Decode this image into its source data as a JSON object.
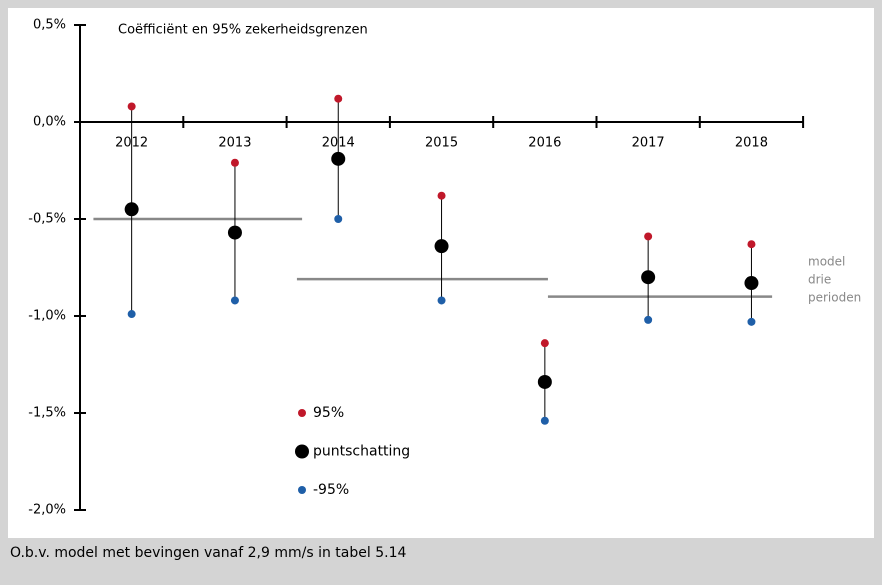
{
  "chart_data": {
    "type": "errorpoint",
    "title": "Coëfficiënt en 95% zekerheidsgrenzen",
    "caption": "O.b.v. model met bevingen vanaf 2,9 mm/s in tabel 5.14",
    "categories": [
      "2012",
      "2013",
      "2014",
      "2015",
      "2016",
      "2017",
      "2018"
    ],
    "series": [
      {
        "name": "95%",
        "color": "#c0182a",
        "values": [
          0.08,
          -0.21,
          0.12,
          -0.38,
          -1.14,
          -0.59,
          -0.63
        ]
      },
      {
        "name": "puntschatting",
        "color": "#000000",
        "values": [
          -0.45,
          -0.57,
          -0.19,
          -0.64,
          -1.34,
          -0.8,
          -0.83
        ]
      },
      {
        "name": "-95%",
        "color": "#1f5fa8",
        "values": [
          -0.99,
          -0.92,
          -0.5,
          -0.92,
          -1.54,
          -1.02,
          -1.03
        ]
      }
    ],
    "model": {
      "label": [
        "model",
        "drie",
        "perioden"
      ],
      "color": "#888888",
      "values": [
        -0.5,
        -0.81,
        -0.9
      ]
    },
    "ylim": [
      -2.0,
      0.5
    ],
    "yticks": [
      {
        "value": 0.5,
        "label": "0,5%"
      },
      {
        "value": 0.0,
        "label": "0,0%"
      },
      {
        "value": -0.5,
        "label": "-0,5%"
      },
      {
        "value": -1.0,
        "label": "-1,0%"
      },
      {
        "value": -1.5,
        "label": "-1,5%"
      },
      {
        "value": -2.0,
        "label": "-2,0%"
      }
    ]
  }
}
